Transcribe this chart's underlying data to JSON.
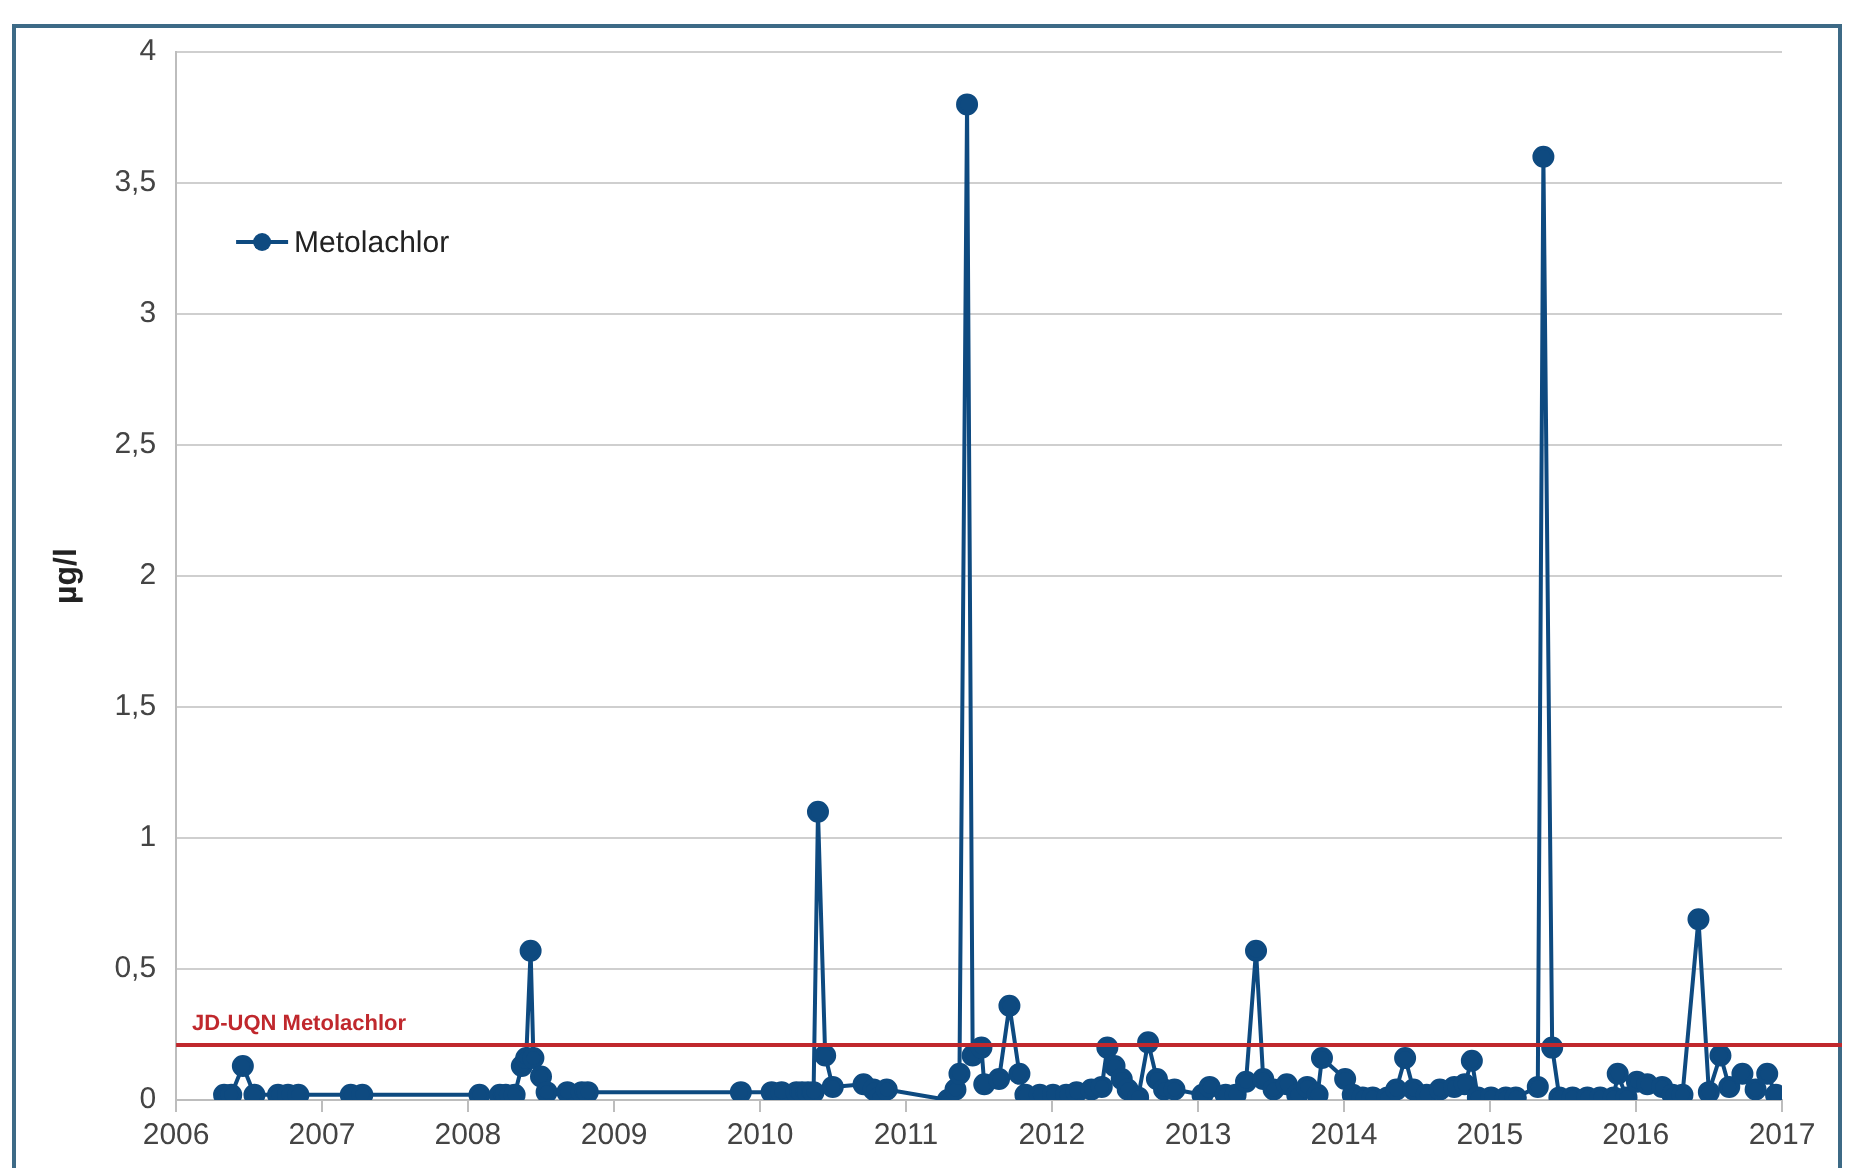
{
  "chart_data": {
    "type": "line",
    "ylabel": "µg/l",
    "xlim": [
      "2006",
      "2017"
    ],
    "xticks": [
      "2006",
      "2007",
      "2008",
      "2009",
      "2010",
      "2011",
      "2012",
      "2013",
      "2014",
      "2015",
      "2016",
      "2017"
    ],
    "ylim": [
      0,
      4
    ],
    "yticks": [
      0,
      {
        "value": 0.5,
        "label": "0,5"
      },
      1,
      {
        "value": 1.5,
        "label": "1,5"
      },
      2,
      {
        "value": 2.5,
        "label": "2,5"
      },
      3,
      {
        "value": 3.5,
        "label": "3,5"
      },
      4
    ],
    "grid": "y",
    "legend": "top left",
    "marker": "circle",
    "line_style": "solid",
    "x": [
      "2006-05-01",
      "2006-05-19",
      "2006-06-17",
      "2006-07-16",
      "2006-09-13",
      "2006-10-08",
      "2006-11-03",
      "2007-03-14",
      "2007-04-12",
      "2008-01-30",
      "2008-03-21",
      "2008-04-05",
      "2008-04-27",
      "2008-05-15",
      "2008-05-26",
      "2008-06-06",
      "2008-06-13",
      "2008-07-02",
      "2008-07-16",
      "2008-09-06",
      "2008-10-12",
      "2008-10-27",
      "2009-11-14",
      "2010-01-30",
      "2010-02-24",
      "2010-04-02",
      "2010-04-16",
      "2010-05-01",
      "2010-05-15",
      "2010-05-26",
      "2010-06-13",
      "2010-07-02",
      "2010-09-17",
      "2010-10-12",
      "2010-10-27",
      "2010-11-14",
      "2011-04-16",
      "2011-05-05",
      "2011-05-15",
      "2011-06-03",
      "2011-06-17",
      "2011-07-09",
      "2011-07-16",
      "2011-08-22",
      "2011-09-17",
      "2011-10-12",
      "2011-10-27",
      "2011-12-02",
      "2012-01-04",
      "2012-02-06",
      "2012-03-03",
      "2012-04-09",
      "2012-05-05",
      "2012-05-19",
      "2012-06-06",
      "2012-06-24",
      "2012-07-09",
      "2012-08-04",
      "2012-08-29",
      "2012-09-20",
      "2012-10-08",
      "2012-11-03",
      "2013-01-12",
      "2013-01-30",
      "2013-03-11",
      "2013-04-05",
      "2013-05-01",
      "2013-05-26",
      "2013-06-13",
      "2013-07-09",
      "2013-08-11",
      "2013-09-06",
      "2013-10-01",
      "2013-10-27",
      "2013-11-07",
      "2014-01-04",
      "2014-01-23",
      "2014-02-17",
      "2014-03-14",
      "2014-04-20",
      "2014-05-12",
      "2014-06-03",
      "2014-06-24",
      "2014-07-27",
      "2014-08-29",
      "2014-10-04",
      "2014-10-30",
      "2014-11-17",
      "2014-12-02",
      "2015-01-04",
      "2015-02-10",
      "2015-03-07",
      "2015-05-01",
      "2015-05-15",
      "2015-06-06",
      "2015-06-24",
      "2015-07-27",
      "2015-09-02",
      "2015-10-04",
      "2015-11-07",
      "2015-11-17",
      "2015-12-09",
      "2016-01-04",
      "2016-01-30",
      "2016-03-07",
      "2016-04-02",
      "2016-04-27",
      "2016-06-06",
      "2016-07-02",
      "2016-07-31",
      "2016-08-22",
      "2016-09-24",
      "2016-10-27",
      "2016-11-25",
      "2016-12-17"
    ],
    "series": [
      {
        "name": "Metolachlor",
        "color": "#0e4a80",
        "values": [
          0.02,
          0.02,
          0.13,
          0.02,
          0.02,
          0.02,
          0.02,
          0.02,
          0.02,
          0.02,
          0.02,
          0.02,
          0.02,
          0.13,
          0.16,
          0.57,
          0.16,
          0.09,
          0.03,
          0.03,
          0.03,
          0.03,
          0.03,
          0.03,
          0.03,
          0.03,
          0.03,
          0.03,
          0.03,
          1.1,
          0.17,
          0.05,
          0.06,
          0.04,
          0.01,
          0.04,
          0.0,
          0.04,
          0.1,
          3.8,
          0.17,
          0.2,
          0.06,
          0.08,
          0.36,
          0.1,
          0.02,
          0.02,
          0.02,
          0.02,
          0.03,
          0.04,
          0.05,
          0.2,
          0.13,
          0.08,
          0.04,
          0.01,
          0.22,
          0.08,
          0.04,
          0.04,
          0.02,
          0.05,
          0.02,
          0.02,
          0.07,
          0.57,
          0.08,
          0.04,
          0.06,
          0.02,
          0.05,
          0.02,
          0.16,
          0.08,
          0.02,
          0.01,
          0.01,
          0.01,
          0.04,
          0.16,
          0.04,
          0.02,
          0.04,
          0.05,
          0.06,
          0.15,
          0.01,
          0.01,
          0.01,
          0.01,
          0.05,
          3.6,
          0.2,
          0.01,
          0.01,
          0.01,
          0.01,
          0.01,
          0.1,
          0.01,
          0.07,
          0.06,
          0.05,
          0.02,
          0.02,
          0.69,
          0.03,
          0.17,
          0.05,
          0.1,
          0.04,
          0.1,
          0.02
        ]
      }
    ],
    "ref_lines": [
      {
        "axis": "y",
        "value": 0.21,
        "label": "JD-UQN Metolachlor",
        "color": "#c0282d"
      }
    ]
  }
}
